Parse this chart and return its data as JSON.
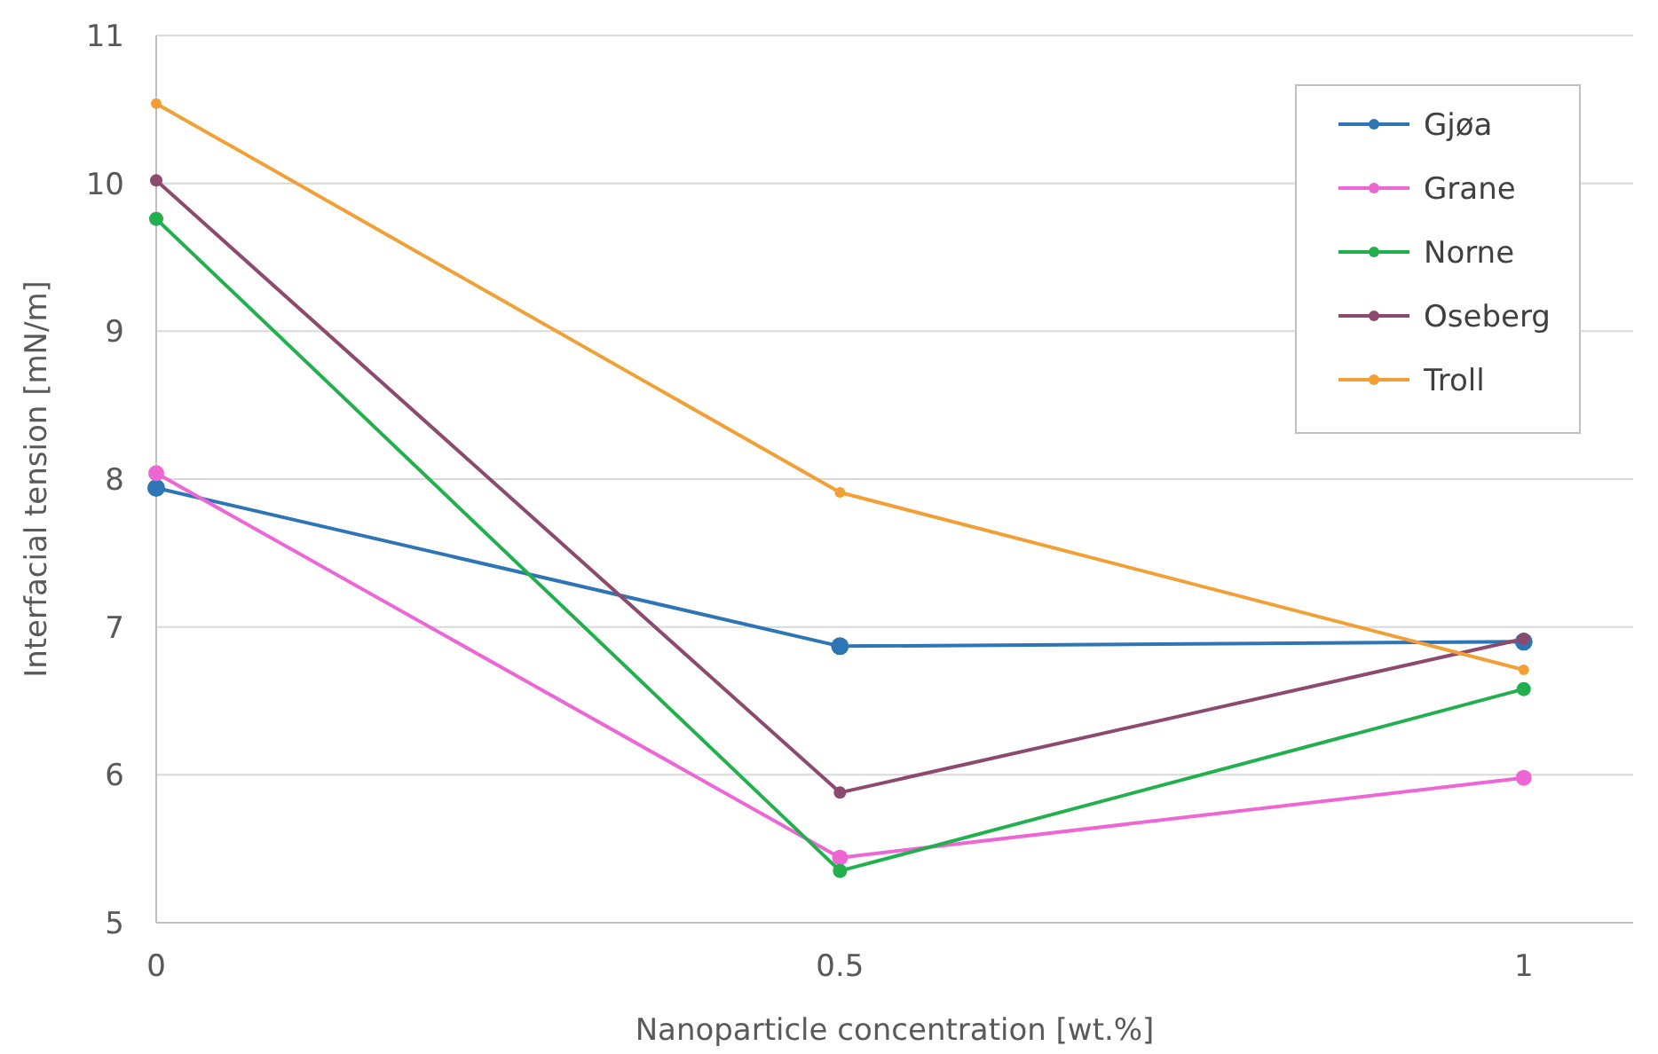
{
  "chart_data": {
    "type": "line",
    "xlabel": "Nanoparticle concentration [wt.%]",
    "ylabel": "Interfacial tension [mN/m]",
    "x": [
      0,
      0.5,
      1
    ],
    "xlim": [
      0,
      1.08
    ],
    "xticks": [
      0,
      0.5,
      1
    ],
    "ylim": [
      5,
      11
    ],
    "yticks": [
      5,
      6,
      7,
      8,
      9,
      10,
      11
    ],
    "grid": "y",
    "legend": "top right",
    "marker": "circle",
    "line_style": "solid",
    "series": [
      {
        "name": "Gjøa",
        "color": "#2e75b6",
        "values": [
          7.94,
          6.87,
          6.9
        ]
      },
      {
        "name": "Grane",
        "color": "#ee66d4",
        "values": [
          8.04,
          5.44,
          5.98
        ]
      },
      {
        "name": "Norne",
        "color": "#22b04e",
        "values": [
          9.76,
          5.35,
          6.58
        ]
      },
      {
        "name": "Oseberg",
        "color": "#8c4a6e",
        "values": [
          10.02,
          5.88,
          6.92
        ]
      },
      {
        "name": "Troll",
        "color": "#f2a035",
        "values": [
          10.54,
          7.91,
          6.71
        ]
      }
    ]
  }
}
